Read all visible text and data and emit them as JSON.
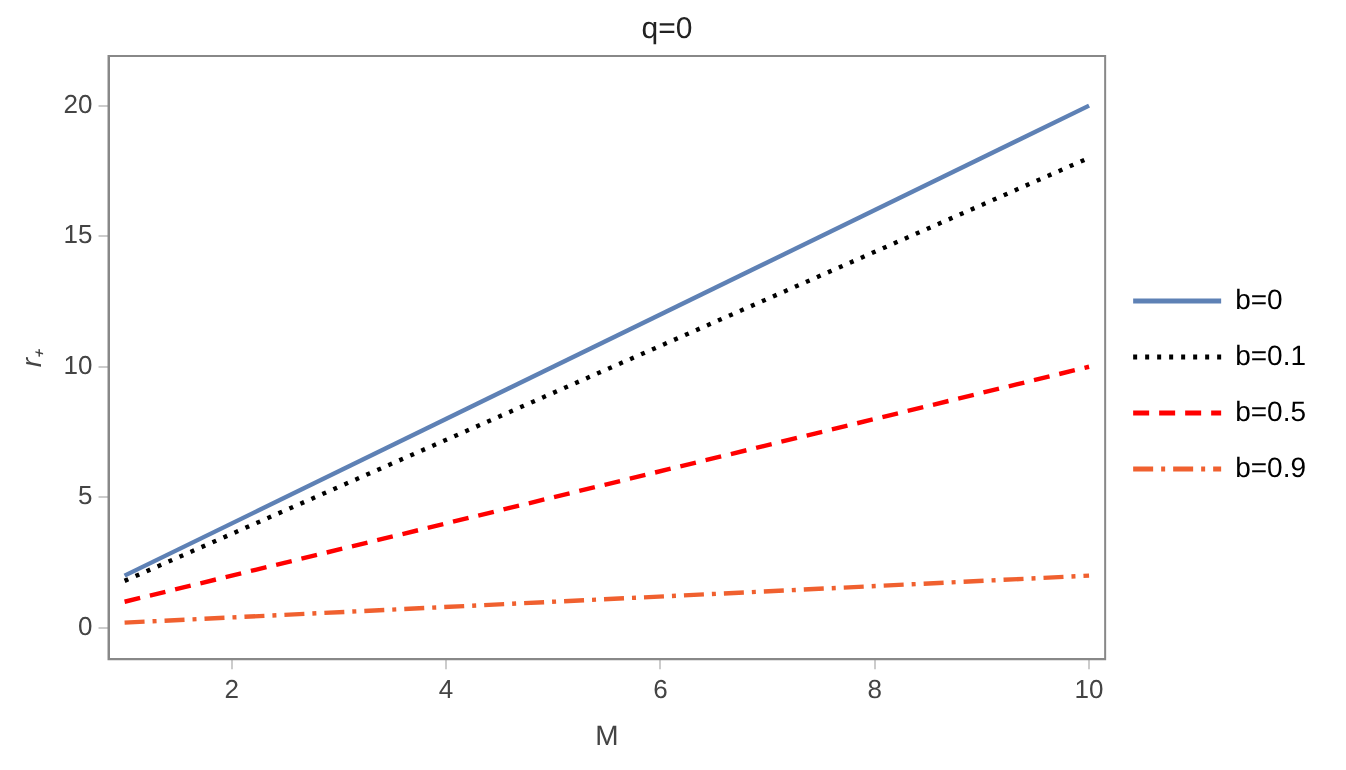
{
  "chart_data": {
    "type": "line",
    "title": "q=0",
    "xlabel": "M",
    "ylabel": "r₊",
    "xlim": [
      0.85,
      10.15
    ],
    "xticks": [
      2,
      4,
      6,
      8,
      10
    ],
    "ylim": [
      -1.2,
      21.9
    ],
    "yticks": [
      0,
      5,
      10,
      15,
      20
    ],
    "grid": false,
    "legend": "right",
    "marker": "none",
    "x": [
      1,
      10
    ],
    "series": [
      {
        "name": "b=0",
        "color": "#5e81b5",
        "line_style": "solid",
        "values": [
          2,
          20
        ]
      },
      {
        "name": "b=0.1",
        "color": "#000000",
        "line_style": "dotted",
        "values": [
          1.8,
          18
        ]
      },
      {
        "name": "b=0.5",
        "color": "#ff0000",
        "line_style": "dashed",
        "values": [
          1,
          10
        ]
      },
      {
        "name": "b=0.9",
        "color": "#f0602f",
        "line_style": "dashdot",
        "values": [
          0.2,
          2
        ]
      }
    ]
  }
}
